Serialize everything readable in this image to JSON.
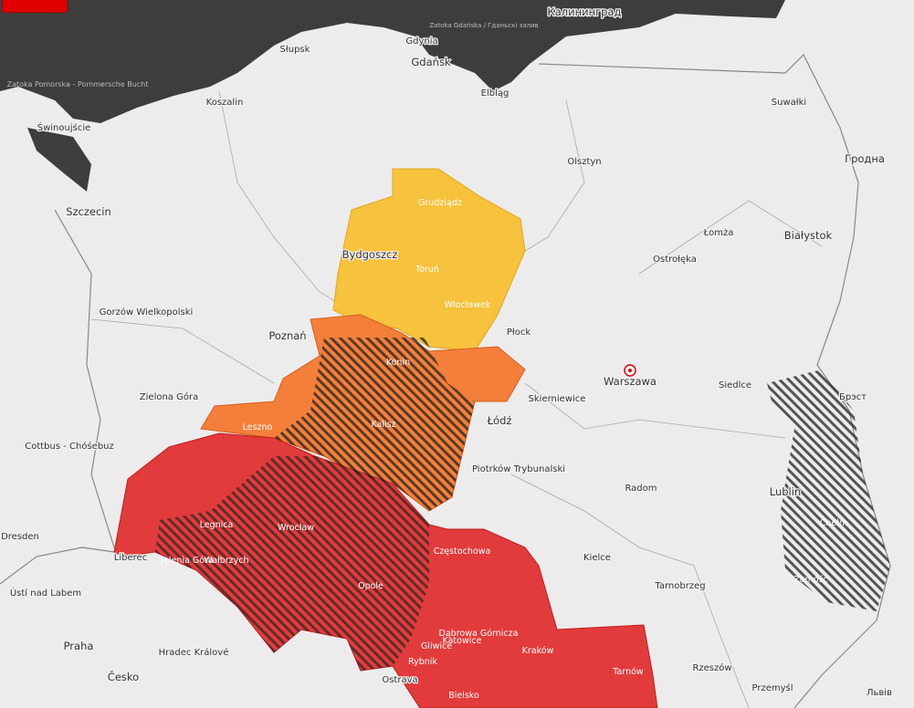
{
  "map": {
    "colors": {
      "sea": "#3d3d3d",
      "land": "#ececec",
      "warning_level1": "#f7c23c",
      "warning_level2": "#f47f3a",
      "warning_level3": "#e23b3b",
      "hatch": "#222222"
    },
    "sea_labels": [
      "Zatoka Pomorska - Pommersche Bucht",
      "Zatoka Gdańska / Гданьскі залив"
    ],
    "cities": [
      "Калининград",
      "Słupsk",
      "Gdynia",
      "Gdańsk",
      "Elbląg",
      "Koszalin",
      "Świnoujście",
      "Szczecin",
      "Suwałki",
      "Olsztyn",
      "Гродна",
      "Grudziądz",
      "Bydgoszcz",
      "Toruń",
      "Łomża",
      "Białystok",
      "Ostrołęka",
      "Włocławek",
      "Gorzów Wielkopolski",
      "Poznań",
      "Płock",
      "Konin",
      "Warszawa",
      "Siedlce",
      "Брэст",
      "Zielona Góra",
      "Skierniewice",
      "Łódź",
      "Kalisz",
      "Leszno",
      "Cottbus - Chóśebuz",
      "Piotrków Trybunalski",
      "Radom",
      "Lublin",
      "Legnica",
      "Dresden",
      "Wrocław",
      "Chełm",
      "Liberec",
      "Jelenia Góra",
      "Wałbrzych",
      "Częstochowa",
      "Kielce",
      "Tarnobrzeg",
      "Zamość",
      "Opole",
      "Ústí nad Labem",
      "Dąbrowa Górnicza",
      "Gliwice",
      "Katowice",
      "Praha",
      "Hradec Králové",
      "Kraków",
      "Rybnik",
      "Tarnów",
      "Rzeszów",
      "Česko",
      "Ostrava",
      "Bielsko",
      "Przemyśl",
      "Львів"
    ]
  }
}
